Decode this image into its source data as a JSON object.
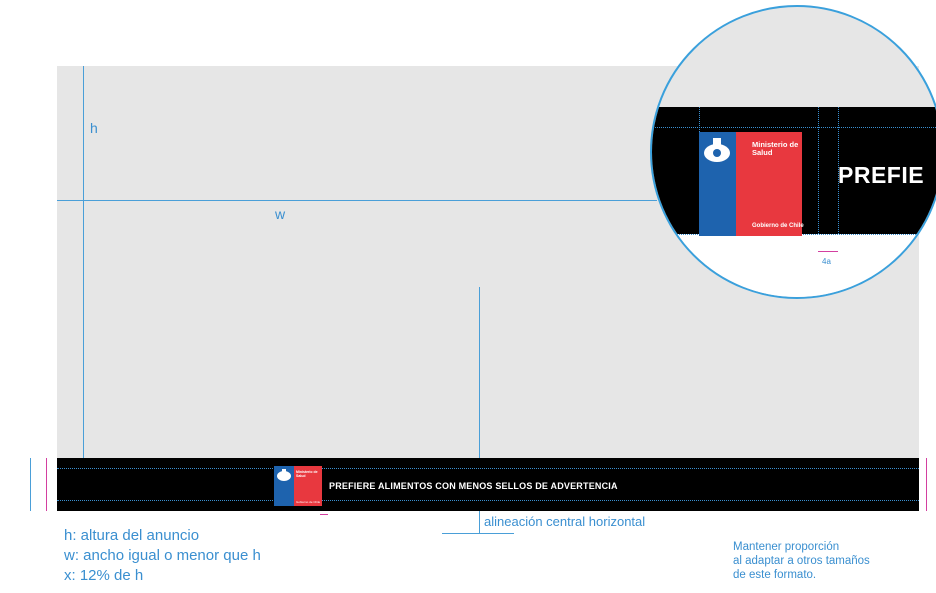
{
  "labels": {
    "h": "h",
    "w": "w",
    "center_alignment": "alineación central horizontal",
    "zoom_measure": "4a"
  },
  "legend": {
    "line1": "h: altura del anuncio",
    "line2": "w: ancho igual o menor que h",
    "line3": "x: 12% de h"
  },
  "note": {
    "line1": "Mantener proporción",
    "line2": "al adaptar a otros tamaños",
    "line3": "de este formato."
  },
  "banner": {
    "text": "PREFIERE ALIMENTOS CON MENOS SELLOS DE ADVERTENCIA"
  },
  "logo": {
    "ministry_line1": "Ministerio de",
    "ministry_line2": "Salud",
    "government": "Gobierno de Chile"
  },
  "zoom": {
    "partial_text": "PREFIE"
  },
  "colors": {
    "guide_blue": "#4a9fd8",
    "logo_blue": "#1e63ae",
    "logo_red": "#e8383f",
    "banner_black": "#000000",
    "background_gray": "#e6e6e6"
  }
}
